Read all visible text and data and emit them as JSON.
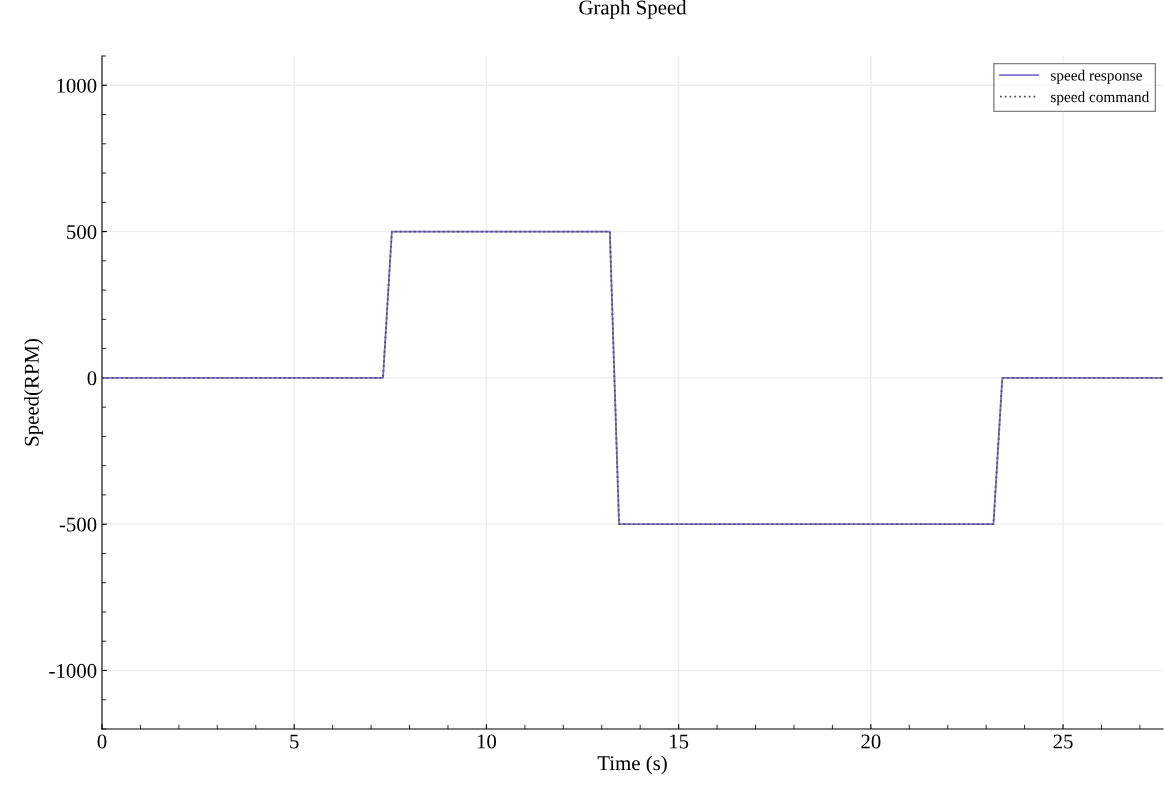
{
  "chart_data": {
    "type": "line",
    "title": "Graph Speed",
    "xlabel": "Time (s)",
    "ylabel": "Speed(RPM)",
    "x": [
      0,
      7.31,
      7.54,
      13.21,
      13.45,
      23.19,
      23.42,
      27.6
    ],
    "series": [
      {
        "name": "speed response",
        "color": "#7b6fd6",
        "values": [
          0,
          0,
          500,
          500,
          -500,
          -500,
          0,
          0
        ],
        "line_style": "solid"
      },
      {
        "name": "speed command",
        "color": "#555555",
        "values": [
          0,
          0,
          500,
          500,
          -500,
          -500,
          0,
          0
        ],
        "line_style": "dotted"
      }
    ],
    "xlim": [
      0,
      27.6
    ],
    "xticks": [
      0,
      5,
      10,
      15,
      20,
      25
    ],
    "ylim": [
      -1200,
      1100
    ],
    "yticks": [
      -1000,
      -500,
      0,
      500,
      1000
    ],
    "grid": true,
    "legend": "top right"
  }
}
